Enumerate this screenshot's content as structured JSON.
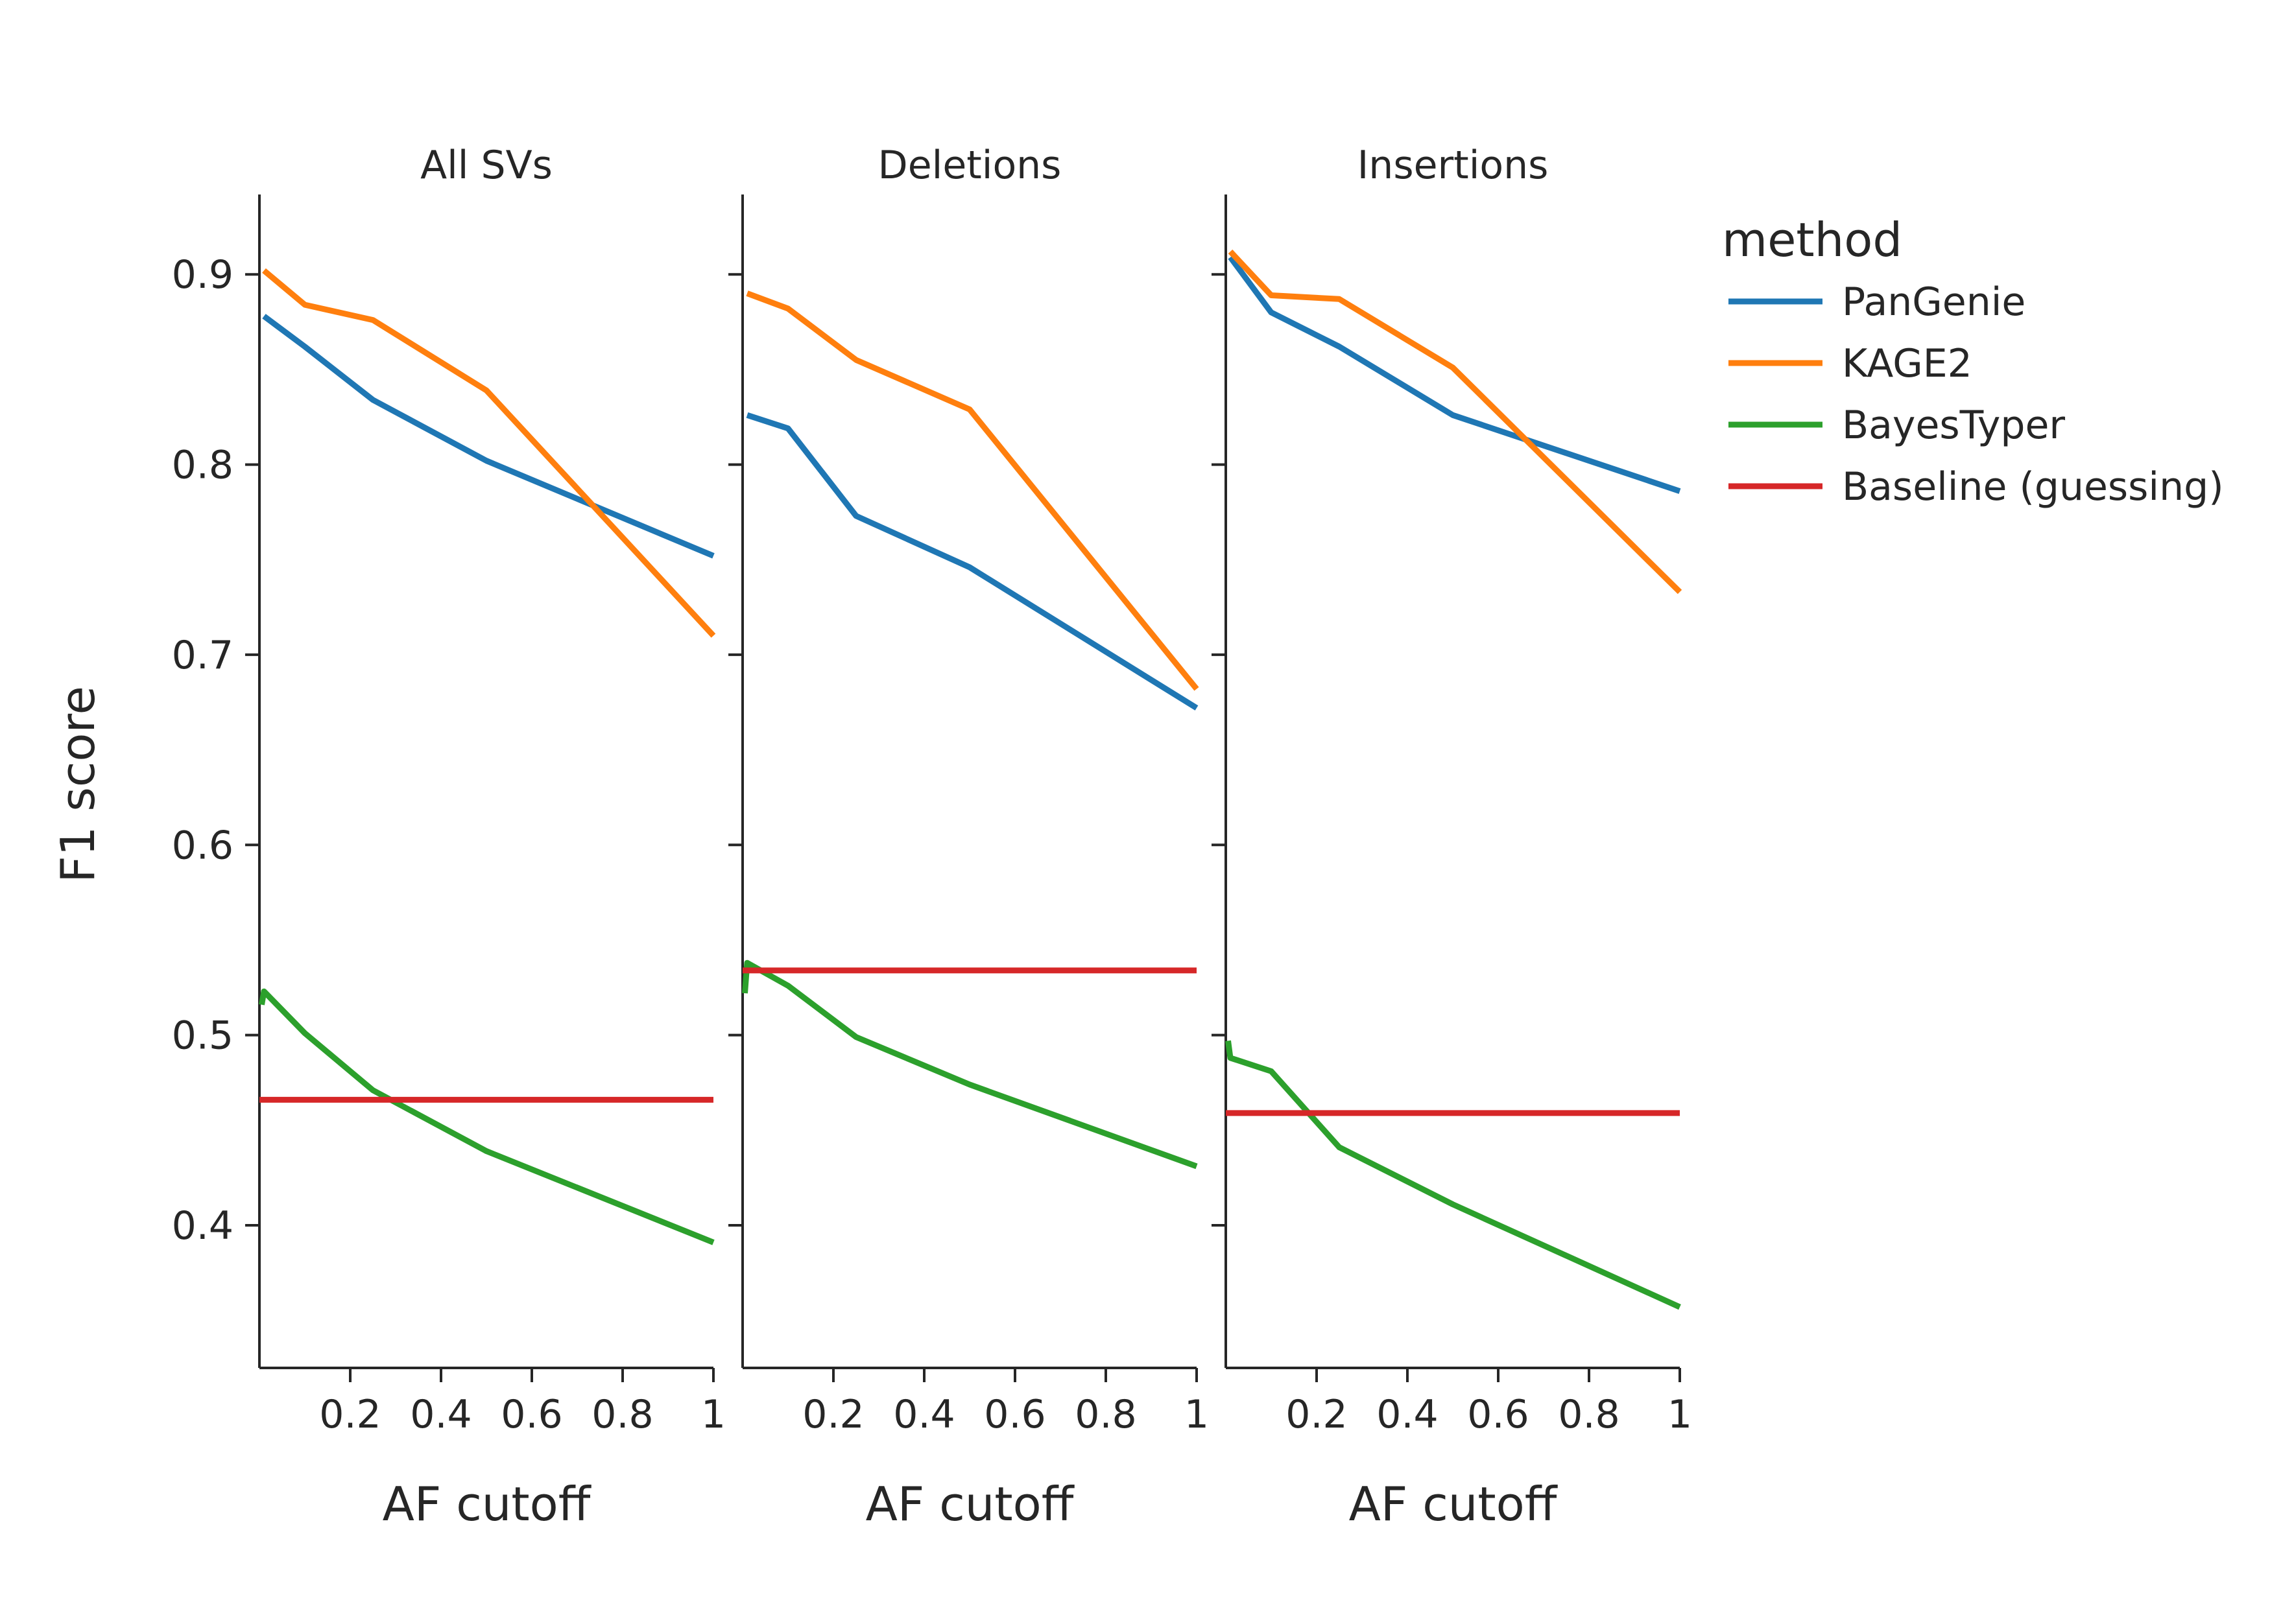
{
  "chart_data": {
    "type": "line",
    "ylabel": "F1 score",
    "xlabel": "AF cutoff",
    "ylim": [
      0.325,
      0.942
    ],
    "xlim": [
      0.0,
      1.0
    ],
    "xticks": [
      0.2,
      0.4,
      0.6,
      0.8,
      1.0
    ],
    "xtick_labels": [
      "0.2",
      "0.4",
      "0.6",
      "0.8",
      "1"
    ],
    "yticks": [
      0.4,
      0.5,
      0.6,
      0.7,
      0.8,
      0.9
    ],
    "ytick_labels": [
      "0.4",
      "0.5",
      "0.6",
      "0.7",
      "0.8",
      "0.9"
    ],
    "grid": false,
    "legend": {
      "title": "method",
      "position": "right",
      "entries": [
        "PanGenie",
        "KAGE2",
        "BayesTyper",
        "Baseline (guessing)"
      ]
    },
    "colors": {
      "PanGenie": "#1f77b4",
      "KAGE2": "#ff7f0e",
      "BayesTyper": "#2ca02c",
      "Baseline (guessing)": "#d62728"
    },
    "panels": [
      {
        "title": "All SVs",
        "series": [
          {
            "name": "PanGenie",
            "x": [
              0.01,
              0.1,
              0.25,
              0.5,
              1.0
            ],
            "y": [
              0.878,
              0.862,
              0.834,
              0.802,
              0.752
            ]
          },
          {
            "name": "KAGE2",
            "x": [
              0.01,
              0.1,
              0.25,
              0.5,
              1.0
            ],
            "y": [
              0.902,
              0.884,
              0.876,
              0.839,
              0.71
            ]
          },
          {
            "name": "BayesTyper",
            "x": [
              0.005,
              0.01,
              0.1,
              0.25,
              0.5,
              1.0
            ],
            "y": [
              0.516,
              0.523,
              0.501,
              0.471,
              0.439,
              0.391
            ]
          },
          {
            "name": "Baseline (guessing)",
            "x": [
              0.0,
              1.0
            ],
            "y": [
              0.466,
              0.466
            ]
          }
        ]
      },
      {
        "title": "Deletions",
        "series": [
          {
            "name": "PanGenie",
            "x": [
              0.01,
              0.1,
              0.25,
              0.5,
              1.0
            ],
            "y": [
              0.826,
              0.819,
              0.773,
              0.746,
              0.672
            ]
          },
          {
            "name": "KAGE2",
            "x": [
              0.01,
              0.1,
              0.25,
              0.5,
              1.0
            ],
            "y": [
              0.89,
              0.882,
              0.855,
              0.829,
              0.682
            ]
          },
          {
            "name": "BayesTyper",
            "x": [
              0.005,
              0.01,
              0.1,
              0.25,
              0.5,
              1.0
            ],
            "y": [
              0.522,
              0.538,
              0.526,
              0.499,
              0.474,
              0.431
            ]
          },
          {
            "name": "Baseline (guessing)",
            "x": [
              0.0,
              1.0
            ],
            "y": [
              0.534,
              0.534
            ]
          }
        ]
      },
      {
        "title": "Insertions",
        "series": [
          {
            "name": "PanGenie",
            "x": [
              0.01,
              0.1,
              0.25,
              0.5,
              1.0
            ],
            "y": [
              0.909,
              0.88,
              0.862,
              0.826,
              0.786
            ]
          },
          {
            "name": "KAGE2",
            "x": [
              0.01,
              0.1,
              0.25,
              0.5,
              1.0
            ],
            "y": [
              0.912,
              0.889,
              0.887,
              0.851,
              0.733
            ]
          },
          {
            "name": "BayesTyper",
            "x": [
              0.005,
              0.01,
              0.1,
              0.25,
              0.5,
              1.0
            ],
            "y": [
              0.497,
              0.488,
              0.481,
              0.441,
              0.411,
              0.357
            ]
          },
          {
            "name": "Baseline (guessing)",
            "x": [
              0.0,
              1.0
            ],
            "y": [
              0.459,
              0.459
            ]
          }
        ]
      }
    ]
  }
}
